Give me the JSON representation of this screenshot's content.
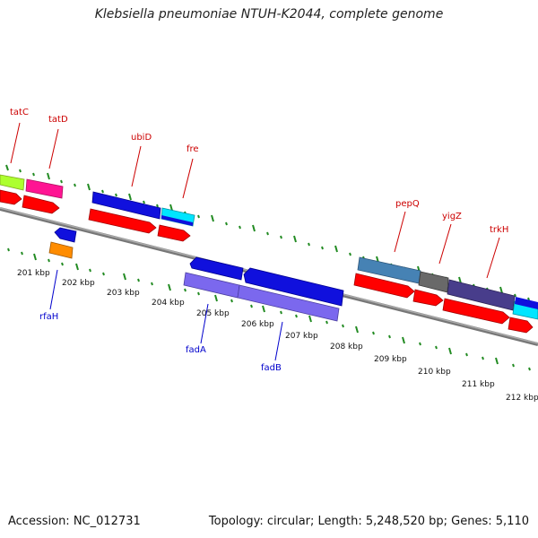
{
  "title": "Klebsiella pneumoniae NTUH-K2044, complete genome",
  "footer": {
    "accession": "Accession: NC_012731",
    "summary": "Topology: circular; Length: 5,248,520 bp; Genes: 5,110"
  },
  "colors": {
    "backbone": "#8c8c8c",
    "forward_label": "#cc0000",
    "reverse_label": "#0000cc",
    "tick": "#228B22",
    "cds": "#ff0000",
    "gene_blue": "#0000ee",
    "gene_violet": "#7b68ee",
    "gene_steel": "#4682b4",
    "gene_darkslate": "#483d8b",
    "gene_gray": "#696969",
    "gene_cyan": "#00ffff",
    "gene_lime": "#adff2f",
    "gene_pink": "#ff1493",
    "gene_orange": "#ff8c00"
  },
  "kbp_labels": [
    "201 kbp",
    "202 kbp",
    "203 kbp",
    "204 kbp",
    "205 kbp",
    "206 kbp",
    "207 kbp",
    "208 kbp",
    "209 kbp",
    "210 kbp",
    "211 kbp",
    "212 kbp"
  ],
  "forward_genes": [
    "tatC",
    "tatD",
    "ubiD",
    "fre",
    "pepQ",
    "yigZ",
    "trkH"
  ],
  "reverse_genes": [
    "rfaH",
    "fadA",
    "fadB"
  ]
}
